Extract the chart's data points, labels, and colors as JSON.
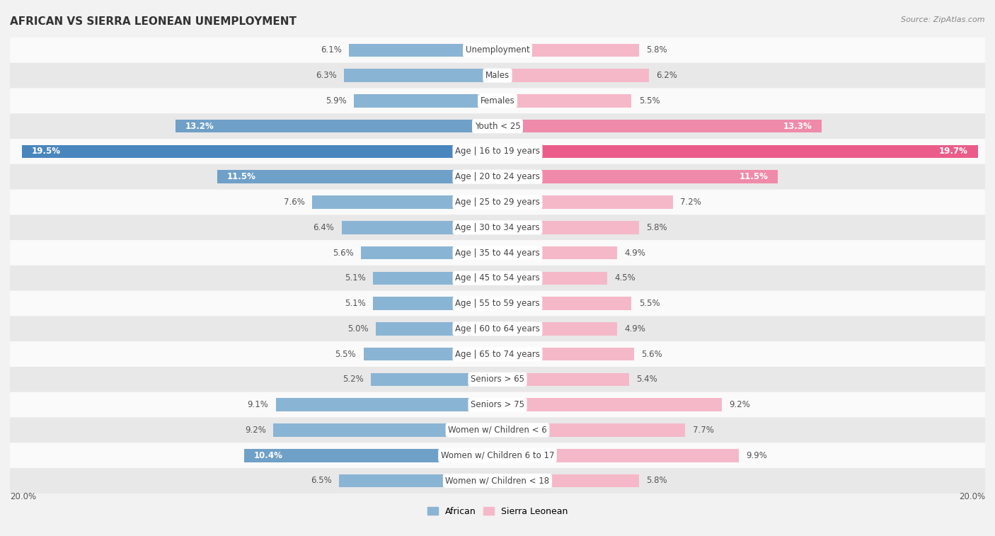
{
  "title": "AFRICAN VS SIERRA LEONEAN UNEMPLOYMENT",
  "source": "Source: ZipAtlas.com",
  "categories": [
    "Unemployment",
    "Males",
    "Females",
    "Youth < 25",
    "Age | 16 to 19 years",
    "Age | 20 to 24 years",
    "Age | 25 to 29 years",
    "Age | 30 to 34 years",
    "Age | 35 to 44 years",
    "Age | 45 to 54 years",
    "Age | 55 to 59 years",
    "Age | 60 to 64 years",
    "Age | 65 to 74 years",
    "Seniors > 65",
    "Seniors > 75",
    "Women w/ Children < 6",
    "Women w/ Children 6 to 17",
    "Women w/ Children < 18"
  ],
  "african": [
    6.1,
    6.3,
    5.9,
    13.2,
    19.5,
    11.5,
    7.6,
    6.4,
    5.6,
    5.1,
    5.1,
    5.0,
    5.5,
    5.2,
    9.1,
    9.2,
    10.4,
    6.5
  ],
  "sierra_leonean": [
    5.8,
    6.2,
    5.5,
    13.3,
    19.7,
    11.5,
    7.2,
    5.8,
    4.9,
    4.5,
    5.5,
    4.9,
    5.6,
    5.4,
    9.2,
    7.7,
    9.9,
    5.8
  ],
  "african_color_normal": "#8ab4d4",
  "african_color_medium": "#6fa0c8",
  "african_color_large": "#4a86be",
  "sierra_leonean_color_normal": "#f5b8c8",
  "sierra_leonean_color_medium": "#f08aaa",
  "sierra_leonean_color_large": "#eb5c8a",
  "background_color": "#f2f2f2",
  "row_color_light": "#fafafa",
  "row_color_dark": "#e8e8e8",
  "max_val": 20.0,
  "title_fontsize": 11,
  "label_fontsize": 8.5,
  "value_fontsize": 8.5,
  "highlight_threshold": 10.0
}
